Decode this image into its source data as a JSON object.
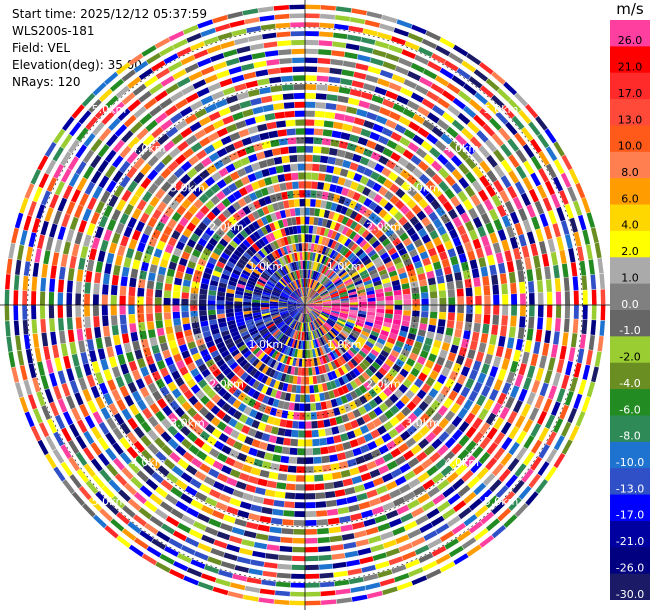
{
  "info": {
    "start_time": "Start time: 2025/12/12 05:37:59",
    "instrument": "WLS200s-181",
    "field": "Field: VEL",
    "elevation": "Elevation(deg): 35.00",
    "nrays": "NRays: 120"
  },
  "colorbar": {
    "unit": "m/s",
    "levels": [
      {
        "label": "26.0",
        "color": "#ff3fa0"
      },
      {
        "label": "21.0",
        "color": "#ff0000"
      },
      {
        "label": "17.0",
        "color": "#ff2a2a"
      },
      {
        "label": "13.0",
        "color": "#ff4a3a"
      },
      {
        "label": "10.0",
        "color": "#ff5a1a"
      },
      {
        "label": "8.0",
        "color": "#ff7f50"
      },
      {
        "label": "6.0",
        "color": "#ff9d00"
      },
      {
        "label": "4.0",
        "color": "#ffd700"
      },
      {
        "label": "2.0",
        "color": "#ffff00"
      },
      {
        "label": "1.0",
        "color": "#aaaaaa"
      },
      {
        "label": "0.0",
        "color": "#808080"
      },
      {
        "label": "-1.0",
        "color": "#666666"
      },
      {
        "label": "-2.0",
        "color": "#9acd32"
      },
      {
        "label": "-4.0",
        "color": "#6b8e23"
      },
      {
        "label": "-6.0",
        "color": "#228b22"
      },
      {
        "label": "-8.0",
        "color": "#2e8b57"
      },
      {
        "label": "-10.0",
        "color": "#1e73d0"
      },
      {
        "label": "-13.0",
        "color": "#3050c8"
      },
      {
        "label": "-17.0",
        "color": "#0000ff"
      },
      {
        "label": "-21.0",
        "color": "#0000a0"
      },
      {
        "label": "-26.0",
        "color": "#000080"
      },
      {
        "label": "-30.0",
        "color": "#1a1a66"
      }
    ]
  },
  "chart_data": {
    "type": "heatmap",
    "projection": "polar PPI",
    "field": "VEL",
    "unit": "m/s",
    "nrays": 120,
    "range_rings_km": [
      1.0,
      2.0,
      3.0,
      4.0,
      5.0
    ],
    "ring_labels": [
      "1.0km",
      "2.0km",
      "3.0km",
      "4.0km",
      "5.0km"
    ],
    "max_range_km": 5.5,
    "value_range": [
      -30.0,
      26.0
    ],
    "notes": "Velocity field is dominated by noise (random values across full range); negative velocities (blue) concentrated near center toward west/northwest, positive (pink) near center toward east."
  }
}
